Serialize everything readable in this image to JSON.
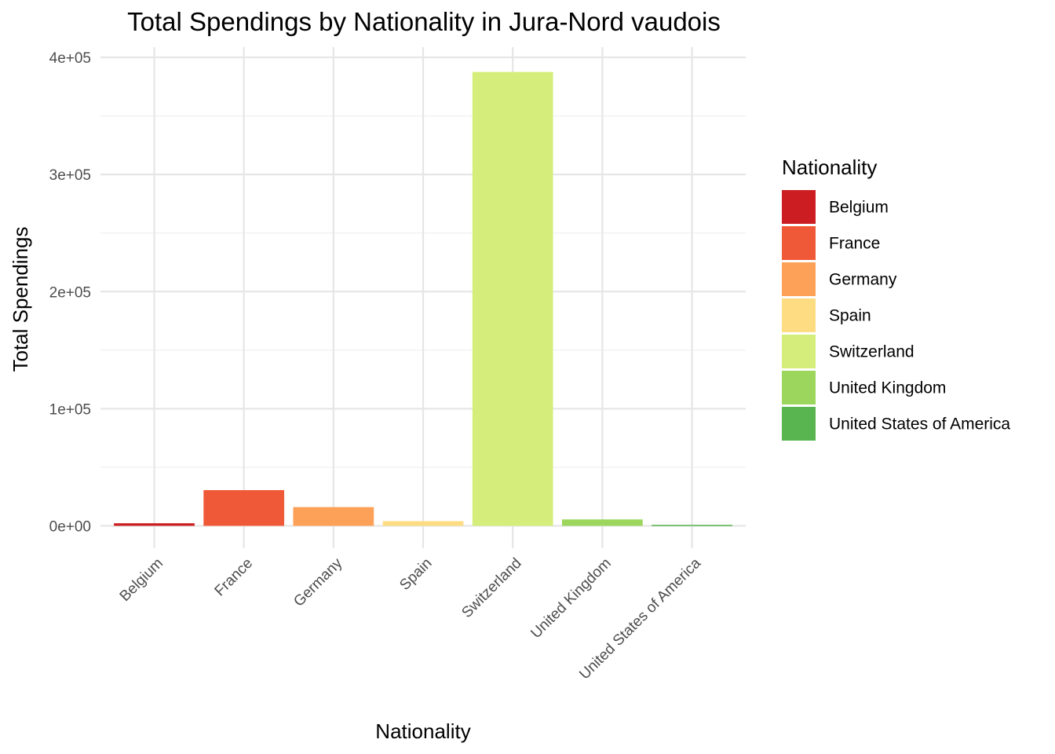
{
  "chart_data": {
    "type": "bar",
    "title": "Total Spendings by Nationality in Jura-Nord vaudois",
    "xlabel": "Nationality",
    "ylabel": "Total Spendings",
    "categories": [
      "Belgium",
      "France",
      "Germany",
      "Spain",
      "Switzerland",
      "United Kingdom",
      "United States of America"
    ],
    "values": [
      2200,
      30500,
      16000,
      4000,
      387500,
      5500,
      800
    ],
    "colors": [
      "#cc1e22",
      "#f05937",
      "#fca157",
      "#fedc81",
      "#d5ee7b",
      "#9cd65c",
      "#58b54f"
    ],
    "ylim": [
      0,
      400000
    ],
    "yticks": [
      0,
      100000,
      200000,
      300000,
      400000
    ],
    "ytick_labels": [
      "0e+00",
      "1e+05",
      "2e+05",
      "3e+05",
      "4e+05"
    ],
    "grid": true,
    "legend": {
      "title": "Nationality",
      "position": "right",
      "entries": [
        "Belgium",
        "France",
        "Germany",
        "Spain",
        "Switzerland",
        "United Kingdom",
        "United States of America"
      ]
    }
  }
}
